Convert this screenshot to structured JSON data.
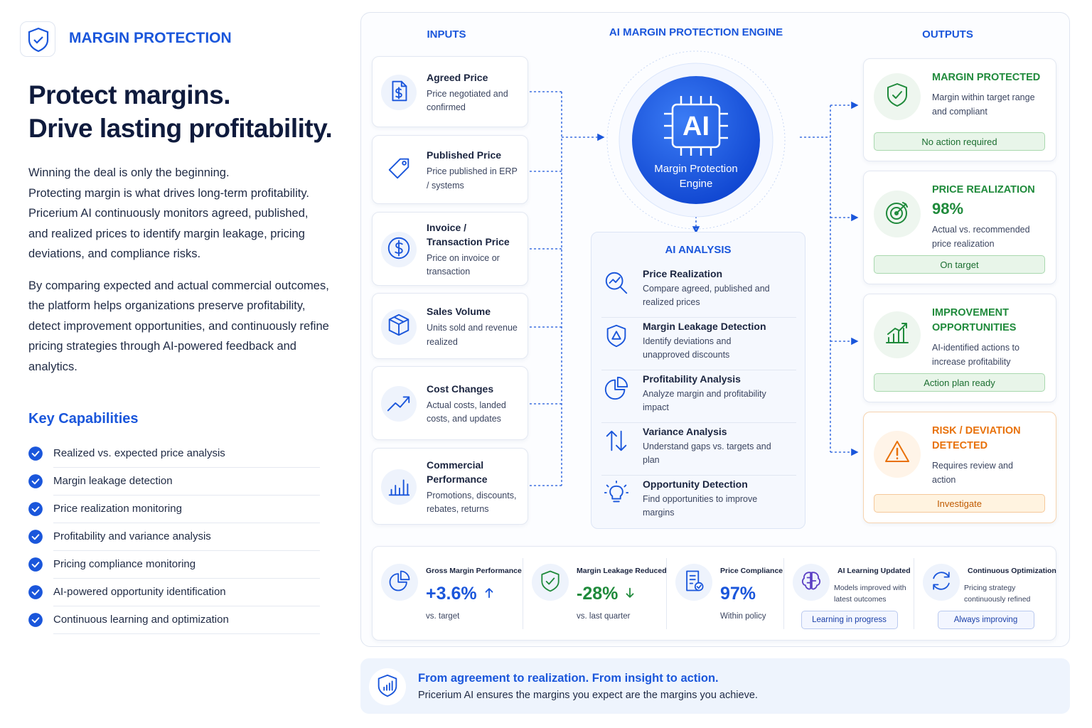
{
  "brand": {
    "title": "MARGIN PROTECTION"
  },
  "headline": [
    "Protect margins.",
    "Drive lasting profitability."
  ],
  "intro": [
    "Winning the deal is only the beginning.",
    "Protecting margin is what drives long-term profitability. Pricerium AI continuously monitors agreed, published, and realized prices to identify margin leakage, pricing deviations, and compliance risks.",
    "By comparing expected and actual commercial outcomes, the platform helps organizations preserve profitability, detect improvement opportunities, and continuously refine pricing strategies through AI-powered feedback and analytics."
  ],
  "capabilities": {
    "title": "Key Capabilities",
    "items": [
      "Realized vs. expected price analysis",
      "Margin leakage detection",
      "Price realization monitoring",
      "Profitability and variance analysis",
      "Pricing compliance monitoring",
      "AI-powered opportunity identification",
      "Continuous learning and optimization"
    ]
  },
  "inputs": {
    "title": "INPUTS",
    "items": [
      {
        "title": "Agreed Price",
        "desc": "Price negotiated and confirmed"
      },
      {
        "title": "Published Price",
        "desc": "Price published in ERP / systems"
      },
      {
        "title": "Invoice / Transaction Price",
        "desc": "Price on invoice or transaction"
      },
      {
        "title": "Sales Volume",
        "desc": "Units sold and revenue realized"
      },
      {
        "title": "Cost Changes",
        "desc": "Actual costs, landed costs, and updates"
      },
      {
        "title": "Commercial Performance",
        "desc": "Promotions, discounts, rebates, returns"
      }
    ]
  },
  "engine": {
    "title": "AI MARGIN PROTECTION ENGINE",
    "badge": "AI",
    "label": "Margin Protection Engine"
  },
  "analysis": {
    "title": "AI ANALYSIS",
    "items": [
      {
        "title": "Price Realization",
        "desc": "Compare agreed, published and realized prices"
      },
      {
        "title": "Margin Leakage Detection",
        "desc": "Identify deviations and unapproved discounts"
      },
      {
        "title": "Profitability Analysis",
        "desc": "Analyze margin and profitability impact"
      },
      {
        "title": "Variance Analysis",
        "desc": "Understand gaps vs. targets and plan"
      },
      {
        "title": "Opportunity Detection",
        "desc": "Find opportunities to improve margins"
      }
    ]
  },
  "outputs": {
    "title": "OUTPUTS",
    "items": [
      {
        "title": "MARGIN PROTECTED",
        "desc": "Margin within target range and compliant",
        "status": "No action required"
      },
      {
        "title": "PRICE REALIZATION",
        "value": "98%",
        "desc": "Actual vs. recommended price realization",
        "status": "On target"
      },
      {
        "title": "IMPROVEMENT OPPORTUNITIES",
        "desc": "AI-identified actions to increase profitability",
        "status": "Action plan ready"
      },
      {
        "title": "RISK / DEVIATION DETECTED",
        "desc": "Requires review and action",
        "status": "Investigate"
      }
    ]
  },
  "metrics": [
    {
      "title": "Gross Margin Performance",
      "value": "+3.6%",
      "note": "vs. target"
    },
    {
      "title": "Margin Leakage Reduced",
      "value": "-28%",
      "note": "vs. last quarter"
    },
    {
      "title": "Price Compliance",
      "value": "97%",
      "note": "Within policy"
    },
    {
      "title": "AI Learning Updated",
      "note": "Models improved with latest outcomes",
      "status": "Learning in progress"
    },
    {
      "title": "Continuous Optimization",
      "note": "Pricing strategy continuously refined",
      "status": "Always improving"
    }
  ],
  "footer": {
    "headline": "From agreement to realization. From insight to action.",
    "text": "Pricerium AI ensures the margins you expect are the margins you achieve."
  }
}
